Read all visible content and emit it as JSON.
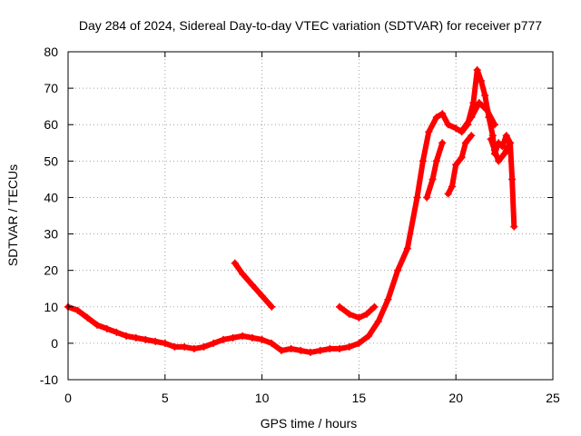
{
  "chart_data": {
    "type": "scatter",
    "title": "Day 284 of 2024, Sidereal Day-to-day VTEC variation (SDTVAR) for receiver p777",
    "xlabel": "GPS time / hours",
    "ylabel": "SDTVAR / TECUs",
    "xlim": [
      0,
      25
    ],
    "ylim": [
      -10,
      80
    ],
    "xticks": [
      0,
      5,
      10,
      15,
      20,
      25
    ],
    "yticks": [
      -10,
      0,
      10,
      20,
      30,
      40,
      50,
      60,
      70,
      80
    ],
    "grid": true,
    "marker": "+",
    "series_color": "#ff0000",
    "series": [
      {
        "name": "main",
        "x": [
          0.0,
          0.5,
          1.0,
          1.5,
          2.0,
          2.5,
          3.0,
          3.5,
          4.0,
          4.5,
          5.0,
          5.5,
          6.0,
          6.5,
          7.0,
          7.5,
          8.0,
          8.5,
          9.0,
          9.5,
          10.0,
          10.5,
          11.0,
          11.5,
          12.0,
          12.5,
          13.0,
          13.5,
          14.0,
          14.5,
          15.0,
          15.5,
          16.0,
          16.5,
          17.0,
          17.5,
          18.0,
          18.3,
          18.6,
          19.0,
          19.3,
          19.6,
          20.0,
          20.3,
          20.6,
          20.9,
          21.1,
          21.3,
          21.5,
          21.7,
          21.9,
          22.0,
          22.2,
          22.4,
          22.6,
          22.8,
          22.9,
          23.0
        ],
        "y": [
          10,
          9,
          7,
          5,
          4,
          3,
          2,
          1.5,
          1,
          0.5,
          0,
          -1,
          -1,
          -1.5,
          -1,
          0,
          1,
          1.5,
          2,
          1.5,
          1,
          0,
          -2,
          -1.5,
          -2,
          -2.5,
          -2,
          -1.5,
          -1.5,
          -1,
          0,
          2,
          6,
          12,
          20,
          26,
          40,
          50,
          58,
          62,
          63,
          60,
          59,
          58,
          60,
          66,
          75,
          72,
          68,
          62,
          57,
          52,
          55,
          54,
          57,
          55,
          45,
          32
        ]
      },
      {
        "name": "segment-2",
        "x": [
          8.6,
          9.0,
          9.5,
          10.0,
          10.5
        ],
        "y": [
          22,
          19,
          16,
          13,
          10
        ]
      },
      {
        "name": "segment-3",
        "x": [
          14.0,
          14.5,
          15.0,
          15.4,
          15.8
        ],
        "y": [
          10,
          8,
          7,
          8,
          10
        ]
      },
      {
        "name": "segment-4",
        "x": [
          18.5,
          18.8,
          19.0,
          19.3
        ],
        "y": [
          40,
          45,
          50,
          55
        ]
      },
      {
        "name": "segment-5",
        "x": [
          19.6,
          19.8,
          20.0,
          20.3,
          20.5,
          20.8
        ],
        "y": [
          41,
          43,
          49,
          51,
          55,
          57
        ]
      },
      {
        "name": "segment-6",
        "x": [
          20.4,
          20.8,
          21.2,
          21.6,
          22.0
        ],
        "y": [
          59,
          62,
          66,
          64,
          60
        ]
      },
      {
        "name": "segment-7",
        "x": [
          21.8,
          22.0,
          22.2,
          22.5,
          22.8
        ],
        "y": [
          56,
          53,
          50,
          52,
          55
        ]
      }
    ]
  }
}
